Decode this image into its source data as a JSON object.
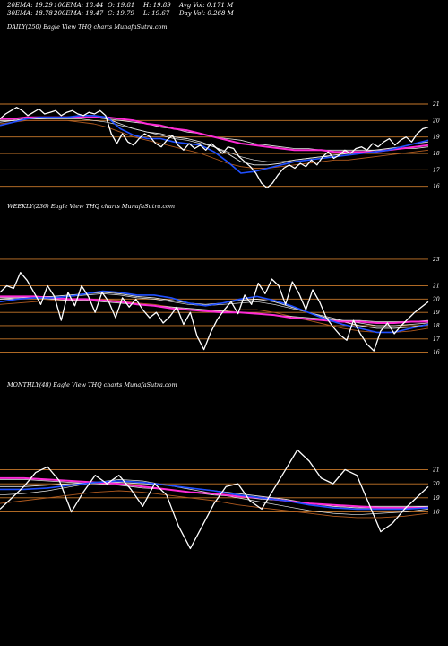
{
  "header": {
    "row1": [
      "20EMA: 19.29",
      "100EMA: 18.44",
      "O: 19.81",
      "H: 19.89",
      "Avg Vol: 0.171 M"
    ],
    "row2": [
      "30EMA: 18.78",
      "200EMA: 18.47",
      "C: 19.79",
      "L: 19.67",
      "Day Vol: 0.268  M"
    ]
  },
  "colors": {
    "background": "#000000",
    "price": "#ffffff",
    "ema20": "#1f4fff",
    "ema100": "#ff2bd6",
    "grid": "#c8782a",
    "ema_white": "#e6e6e6",
    "ema_brown": "#b05a1e"
  },
  "chart_data": [
    {
      "type": "line",
      "title": "DAILY(250) Eagle  View  THQ charts MunafaSutra.com",
      "yticks": [
        21,
        20,
        19,
        18,
        17,
        16
      ],
      "ylim": [
        15.6,
        21.6
      ],
      "n": 250,
      "series": [
        {
          "key": "price",
          "values": [
            20.1,
            20.4,
            20.6,
            20.8,
            20.6,
            20.3,
            20.5,
            20.7,
            20.4,
            20.5,
            20.6,
            20.3,
            20.5,
            20.6,
            20.4,
            20.3,
            20.5,
            20.4,
            20.6,
            20.3,
            19.2,
            18.6,
            19.2,
            18.7,
            18.5,
            18.9,
            19.2,
            19.0,
            18.6,
            18.4,
            18.8,
            19.1,
            18.5,
            18.2,
            18.6,
            18.3,
            18.5,
            18.2,
            18.6,
            18.3,
            18.0,
            18.4,
            18.3,
            17.8,
            17.5,
            17.2,
            16.8,
            16.2,
            15.9,
            16.2,
            16.7,
            17.1,
            17.3,
            17.1,
            17.4,
            17.2,
            17.6,
            17.3,
            17.8,
            18.1,
            17.7,
            17.9,
            18.2,
            18.0,
            18.3,
            18.4,
            18.2,
            18.6,
            18.4,
            18.7,
            18.9,
            18.5,
            18.8,
            19.0,
            18.7,
            19.2,
            19.5,
            19.6
          ]
        },
        {
          "key": "ema20",
          "values": [
            19.7,
            19.9,
            20.1,
            20.2,
            20.2,
            20.2,
            20.3,
            20.3,
            20.2,
            19.5,
            19.1,
            18.9,
            18.9,
            18.7,
            18.6,
            18.5,
            18.1,
            17.5,
            16.8,
            16.9,
            17.1,
            17.3,
            17.5,
            17.6,
            17.7,
            17.8,
            17.9,
            18.0,
            18.1,
            18.2,
            18.4,
            18.6,
            18.8
          ]
        },
        {
          "key": "ema30",
          "values": [
            19.9,
            20.0,
            20.1,
            20.2,
            20.2,
            20.2,
            20.2,
            20.2,
            20.1,
            19.8,
            19.5,
            19.3,
            19.2,
            19.0,
            18.9,
            18.7,
            18.4,
            18.0,
            17.5,
            17.3,
            17.3,
            17.4,
            17.6,
            17.7,
            17.8,
            17.9,
            18.0,
            18.1,
            18.2,
            18.3,
            18.4,
            18.6,
            18.7
          ]
        },
        {
          "key": "ema100",
          "values": [
            20.1,
            20.1,
            20.2,
            20.2,
            20.2,
            20.2,
            20.2,
            20.2,
            20.2,
            20.1,
            20.0,
            19.8,
            19.7,
            19.5,
            19.4,
            19.2,
            19.0,
            18.8,
            18.6,
            18.5,
            18.4,
            18.3,
            18.2,
            18.2,
            18.2,
            18.1,
            18.1,
            18.1,
            18.1,
            18.2,
            18.3,
            18.4,
            18.5
          ]
        },
        {
          "key": "ema200",
          "values": [
            20.0,
            20.0,
            20.1,
            20.1,
            20.2,
            20.2,
            20.2,
            20.2,
            20.1,
            20.0,
            19.9,
            19.8,
            19.6,
            19.5,
            19.3,
            19.2,
            19.0,
            18.9,
            18.8,
            18.6,
            18.5,
            18.4,
            18.3,
            18.3,
            18.2,
            18.2,
            18.2,
            18.2,
            18.2,
            18.2,
            18.3,
            18.3,
            18.4
          ]
        },
        {
          "key": "emaW",
          "values": [
            20.0,
            20.0,
            20.1,
            20.1,
            20.1,
            20.1,
            20.1,
            20.0,
            19.9,
            19.7,
            19.5,
            19.3,
            19.1,
            18.9,
            18.8,
            18.6,
            18.4,
            18.1,
            17.8,
            17.6,
            17.5,
            17.5,
            17.6,
            17.7,
            17.8,
            17.8,
            17.9,
            18.0,
            18.1,
            18.2,
            18.3,
            18.4,
            18.5
          ]
        },
        {
          "key": "emaB",
          "values": [
            19.8,
            19.9,
            20.0,
            20.0,
            20.0,
            20.0,
            19.9,
            19.8,
            19.6,
            19.3,
            19.0,
            18.8,
            18.6,
            18.4,
            18.2,
            18.0,
            17.7,
            17.4,
            17.2,
            17.1,
            17.1,
            17.2,
            17.3,
            17.4,
            17.5,
            17.6,
            17.6,
            17.7,
            17.8,
            17.9,
            18.0,
            18.1,
            18.2
          ]
        }
      ]
    },
    {
      "type": "line",
      "title": "WEEKLY(236) Eagle  View  THQ charts MunafaSutra.com",
      "yticks": [
        23,
        21,
        20,
        19,
        18,
        17,
        16
      ],
      "ylim": [
        15.5,
        23.4
      ],
      "n": 236,
      "series": [
        {
          "key": "price",
          "values": [
            20.5,
            21.0,
            20.8,
            22.0,
            21.4,
            20.5,
            19.6,
            21.0,
            20.2,
            18.4,
            20.5,
            19.5,
            21.0,
            20.2,
            19.0,
            20.5,
            19.8,
            18.6,
            20.1,
            19.4,
            20.0,
            19.2,
            18.6,
            19.0,
            18.2,
            18.7,
            19.4,
            18.1,
            19.0,
            17.2,
            16.2,
            17.5,
            18.5,
            19.2,
            19.8,
            18.9,
            20.3,
            19.6,
            21.2,
            20.4,
            21.5,
            21.0,
            19.6,
            21.3,
            20.4,
            19.2,
            20.7,
            19.8,
            18.6,
            17.9,
            17.3,
            16.9,
            18.4,
            17.4,
            16.6,
            16.1,
            17.6,
            18.2,
            17.4,
            18.0,
            18.5,
            19.0,
            19.4,
            19.8
          ]
        },
        {
          "key": "ema20",
          "values": [
            19.8,
            20.0,
            20.1,
            20.1,
            20.2,
            20.4,
            20.6,
            20.5,
            20.3,
            20.3,
            20.1,
            19.7,
            19.5,
            19.7,
            20.0,
            20.2,
            19.9,
            19.5,
            19.0,
            18.5,
            18.1,
            17.8,
            17.5,
            17.5,
            17.8,
            18.1
          ]
        },
        {
          "key": "ema30",
          "values": [
            20.0,
            20.1,
            20.2,
            20.2,
            20.3,
            20.4,
            20.5,
            20.4,
            20.2,
            20.1,
            19.9,
            19.7,
            19.6,
            19.7,
            19.9,
            20.0,
            19.8,
            19.4,
            19.0,
            18.6,
            18.3,
            18.0,
            17.8,
            17.8,
            17.9,
            18.1
          ]
        },
        {
          "key": "ema100",
          "values": [
            20.2,
            20.2,
            20.2,
            20.1,
            20.0,
            20.0,
            19.9,
            19.8,
            19.6,
            19.5,
            19.3,
            19.2,
            19.1,
            19.0,
            19.0,
            18.9,
            18.8,
            18.6,
            18.5,
            18.4,
            18.3,
            18.3,
            18.2,
            18.2,
            18.3,
            18.3
          ]
        },
        {
          "key": "ema200",
          "values": [
            20.1,
            20.1,
            20.1,
            20.0,
            19.9,
            19.9,
            19.8,
            19.7,
            19.6,
            19.5,
            19.4,
            19.3,
            19.2,
            19.1,
            19.0,
            18.9,
            18.8,
            18.7,
            18.6,
            18.5,
            18.4,
            18.4,
            18.3,
            18.3,
            18.3,
            18.4
          ]
        },
        {
          "key": "emaW",
          "values": [
            20.0,
            20.0,
            20.1,
            20.1,
            20.2,
            20.3,
            20.4,
            20.3,
            20.1,
            20.0,
            19.8,
            19.6,
            19.5,
            19.6,
            19.7,
            19.8,
            19.6,
            19.3,
            19.0,
            18.7,
            18.4,
            18.2,
            18.0,
            18.0,
            18.1,
            18.2
          ]
        },
        {
          "key": "emaB",
          "values": [
            19.6,
            19.7,
            19.8,
            19.9,
            19.9,
            20.0,
            20.0,
            19.9,
            19.7,
            19.6,
            19.4,
            19.2,
            19.1,
            19.1,
            19.2,
            19.2,
            19.0,
            18.7,
            18.4,
            18.1,
            17.8,
            17.6,
            17.5,
            17.5,
            17.6,
            17.8
          ]
        }
      ]
    },
    {
      "type": "line",
      "title": "MONTHLY(48) Eagle  View  THQ charts MunafaSutra.com",
      "yticks": [
        21,
        20,
        19,
        18
      ],
      "ylim": [
        14.6,
        23.0
      ],
      "n": 48,
      "series": [
        {
          "key": "price",
          "values": [
            18.2,
            19.0,
            19.8,
            20.8,
            21.2,
            20.2,
            18.0,
            19.4,
            20.6,
            20.0,
            20.6,
            19.6,
            18.4,
            20.0,
            19.2,
            17.0,
            15.4,
            17.0,
            18.6,
            19.8,
            20.0,
            18.8,
            18.2,
            19.6,
            21.0,
            22.4,
            21.6,
            20.4,
            20.0,
            21.0,
            20.6,
            18.6,
            16.6,
            17.2,
            18.2,
            19.0,
            19.8
          ]
        },
        {
          "key": "ema20",
          "values": [
            19.6,
            19.6,
            19.7,
            19.9,
            20.1,
            20.2,
            20.1,
            19.9,
            19.7,
            19.5,
            19.2,
            19.0,
            18.8,
            18.5,
            18.3,
            18.2,
            18.2,
            18.2,
            18.3
          ]
        },
        {
          "key": "ema30",
          "values": [
            19.8,
            19.8,
            19.9,
            20.0,
            20.1,
            20.1,
            20.0,
            19.9,
            19.7,
            19.5,
            19.3,
            19.1,
            18.9,
            18.6,
            18.4,
            18.3,
            18.3,
            18.3,
            18.4
          ]
        },
        {
          "key": "ema100",
          "values": [
            20.4,
            20.4,
            20.3,
            20.2,
            20.1,
            20.0,
            19.8,
            19.6,
            19.4,
            19.3,
            19.1,
            19.0,
            18.8,
            18.6,
            18.5,
            18.4,
            18.3,
            18.3,
            18.3
          ]
        },
        {
          "key": "ema200",
          "values": [
            20.3,
            20.3,
            20.2,
            20.1,
            20.0,
            19.9,
            19.7,
            19.6,
            19.4,
            19.2,
            19.1,
            18.9,
            18.8,
            18.6,
            18.5,
            18.4,
            18.4,
            18.4,
            18.4
          ]
        },
        {
          "key": "emaW",
          "values": [
            19.2,
            19.3,
            19.5,
            19.8,
            20.1,
            20.3,
            20.2,
            19.9,
            19.6,
            19.3,
            19.0,
            18.7,
            18.4,
            18.1,
            17.9,
            17.8,
            17.9,
            18.0,
            18.2
          ]
        },
        {
          "key": "emaB",
          "values": [
            18.6,
            18.8,
            19.0,
            19.2,
            19.4,
            19.5,
            19.4,
            19.2,
            19.0,
            18.8,
            18.5,
            18.3,
            18.1,
            17.9,
            17.7,
            17.6,
            17.6,
            17.7,
            17.9
          ]
        }
      ]
    }
  ]
}
